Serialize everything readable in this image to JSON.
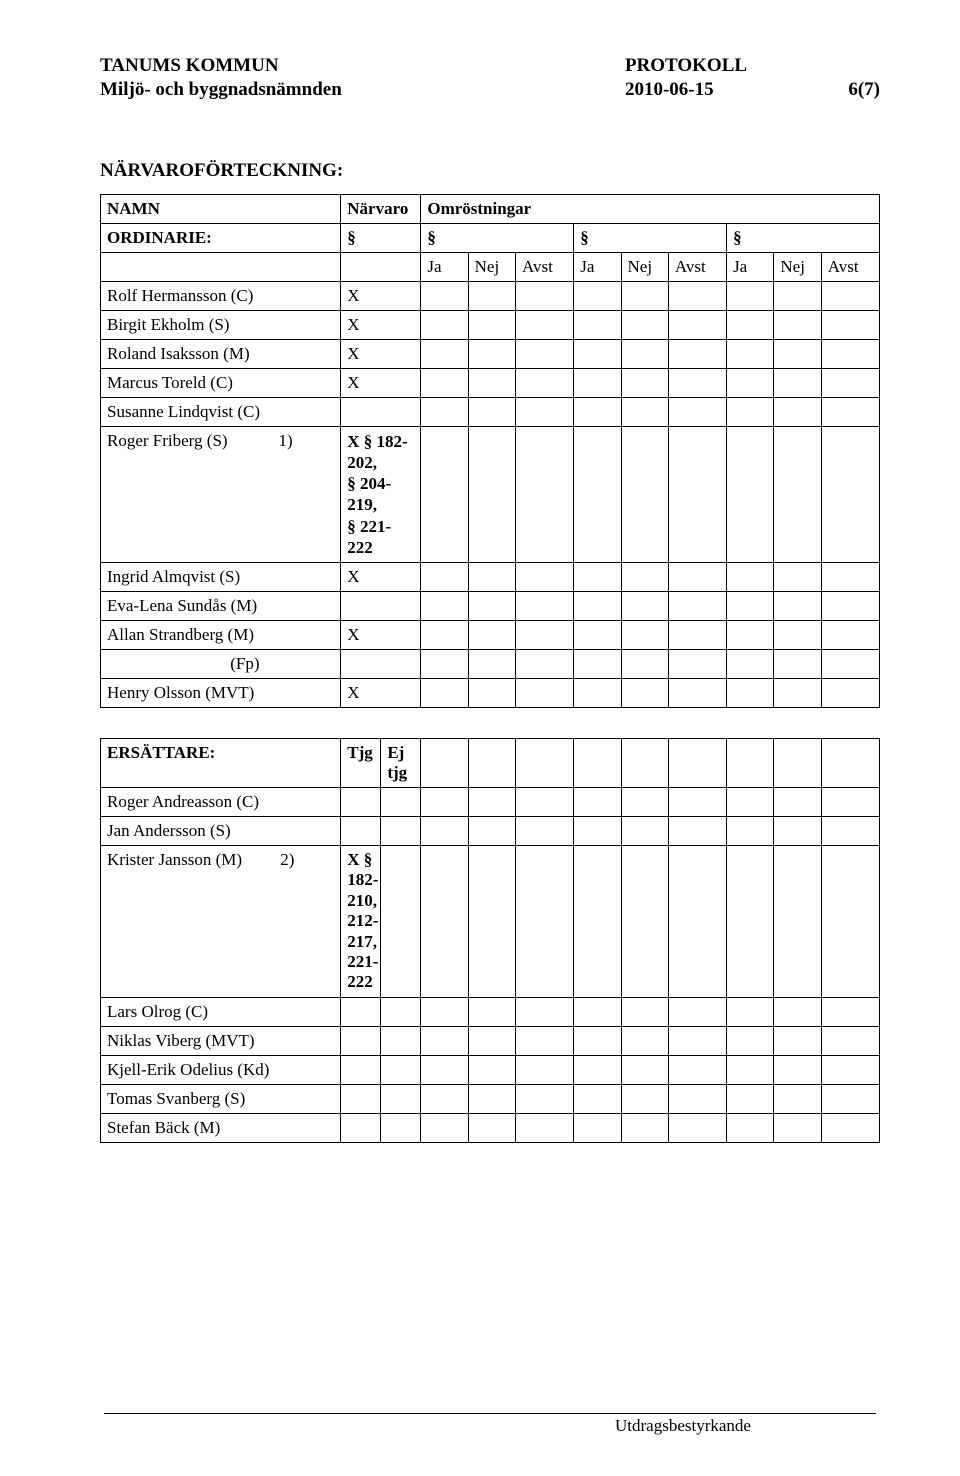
{
  "header": {
    "left_line1": "TANUMS KOMMUN",
    "left_line2": "Miljö- och byggnadsnämnden",
    "right_line1": "PROTOKOLL",
    "right_date": "2010-06-15",
    "right_page": "6(7)"
  },
  "section_title": "NÄRVAROFÖRTECKNING:",
  "headers": {
    "name": "NAMN",
    "narvaro": "Närvaro",
    "omrost": "Omröstningar",
    "ordinarie": "ORDINARIE:",
    "section": "§",
    "vote_ja": "Ja",
    "vote_nej": "Nej",
    "vote_avst": "Avst"
  },
  "ordinarie": [
    {
      "name": "Rolf Hermansson (C)",
      "narvaro": "X"
    },
    {
      "name": "Birgit Ekholm (S)",
      "narvaro": "X"
    },
    {
      "name": "Roland Isaksson (M)",
      "narvaro": "X"
    },
    {
      "name": "Marcus Toreld (C)",
      "narvaro": "X"
    },
    {
      "name": "Susanne Lindqvist (C)",
      "narvaro": ""
    },
    {
      "name": "Roger Friberg (S)            1)",
      "narvaro": "",
      "note": "X § 182-202,\n§ 204-219,\n§ 221-222"
    },
    {
      "name": "Ingrid Almqvist (S)",
      "narvaro": "X"
    },
    {
      "name": "Eva-Lena Sundås (M)",
      "narvaro": ""
    },
    {
      "name": "Allan Strandberg (M)",
      "narvaro": "X"
    },
    {
      "name": "                             (Fp)",
      "narvaro": ""
    },
    {
      "name": "Henry Olsson (MVT)",
      "narvaro": "X"
    }
  ],
  "ersattare_header": {
    "label": "ERSÄTTARE:",
    "tjg": "Tjg",
    "ej_tjg": "Ej\ntjg"
  },
  "ersattare": [
    {
      "name": "Roger Andreasson (C)",
      "col1": "",
      "col2": ""
    },
    {
      "name": "Jan Andersson (S)",
      "col1": "",
      "col2": ""
    },
    {
      "name": "Krister Jansson (M)         2)",
      "col1_note": "X §\n182-\n210,\n212-\n217,\n221-\n222",
      "col2": ""
    },
    {
      "name": "Lars Olrog (C)",
      "col1": "",
      "col2": ""
    },
    {
      "name": "Niklas Viberg (MVT)",
      "col1": "",
      "col2": ""
    },
    {
      "name": "Kjell-Erik Odelius (Kd)",
      "col1": "",
      "col2": ""
    },
    {
      "name": "Tomas Svanberg (S)",
      "col1": "",
      "col2": ""
    },
    {
      "name": "Stefan Bäck (M)",
      "col1": "",
      "col2": ""
    }
  ],
  "footer": {
    "label": "Utdragsbestyrkande"
  }
}
